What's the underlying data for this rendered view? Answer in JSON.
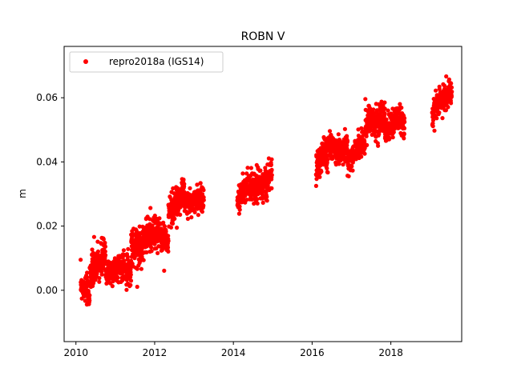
{
  "chart_data": {
    "type": "scatter",
    "title": "ROBN V",
    "xlabel": "",
    "ylabel": "m",
    "xlim": [
      2009.7,
      2019.8
    ],
    "ylim": [
      -0.016,
      0.076
    ],
    "x_ticks": [
      2010,
      2012,
      2014,
      2016,
      2018
    ],
    "y_ticks": [
      0.0,
      0.02,
      0.04,
      0.06
    ],
    "x_tick_labels": [
      "2010",
      "2012",
      "2014",
      "2016",
      "2018"
    ],
    "y_tick_labels": [
      "0.00",
      "0.02",
      "0.04",
      "0.06"
    ],
    "grid": false,
    "legend_position": "top-left",
    "colors": {
      "series": "#ff0000",
      "axes": "#000000",
      "background": "#ffffff"
    },
    "series": [
      {
        "name": "repro2018a (IGS14)",
        "marker": "circle",
        "segments": [
          {
            "x_start": 2010.12,
            "x_end": 2010.35,
            "y_start": 0.0,
            "y_end": -0.004,
            "spread": 0.004
          },
          {
            "x_start": 2010.35,
            "x_end": 2010.75,
            "y_start": 0.003,
            "y_end": 0.014,
            "spread": 0.006
          },
          {
            "x_start": 2010.75,
            "x_end": 2011.4,
            "y_start": 0.008,
            "y_end": 0.004,
            "spread": 0.004
          },
          {
            "x_start": 2011.4,
            "x_end": 2011.85,
            "y_start": 0.012,
            "y_end": 0.02,
            "spread": 0.006
          },
          {
            "x_start": 2011.85,
            "x_end": 2012.35,
            "y_start": 0.02,
            "y_end": 0.012,
            "spread": 0.005
          },
          {
            "x_start": 2012.35,
            "x_end": 2012.75,
            "y_start": 0.022,
            "y_end": 0.034,
            "spread": 0.005
          },
          {
            "x_start": 2012.75,
            "x_end": 2013.25,
            "y_start": 0.03,
            "y_end": 0.026,
            "spread": 0.004
          },
          {
            "x_start": 2014.1,
            "x_end": 2014.5,
            "y_start": 0.026,
            "y_end": 0.033,
            "spread": 0.004
          },
          {
            "x_start": 2014.5,
            "x_end": 2014.98,
            "y_start": 0.033,
            "y_end": 0.037,
            "spread": 0.005
          },
          {
            "x_start": 2016.1,
            "x_end": 2016.4,
            "y_start": 0.036,
            "y_end": 0.042,
            "spread": 0.005
          },
          {
            "x_start": 2016.4,
            "x_end": 2016.9,
            "y_start": 0.044,
            "y_end": 0.047,
            "spread": 0.004
          },
          {
            "x_start": 2016.9,
            "x_end": 2017.35,
            "y_start": 0.04,
            "y_end": 0.044,
            "spread": 0.004
          },
          {
            "x_start": 2017.35,
            "x_end": 2017.85,
            "y_start": 0.05,
            "y_end": 0.057,
            "spread": 0.005
          },
          {
            "x_start": 2017.85,
            "x_end": 2018.35,
            "y_start": 0.052,
            "y_end": 0.05,
            "spread": 0.004
          },
          {
            "x_start": 2019.05,
            "x_end": 2019.55,
            "y_start": 0.053,
            "y_end": 0.062,
            "spread": 0.004
          }
        ]
      }
    ]
  }
}
